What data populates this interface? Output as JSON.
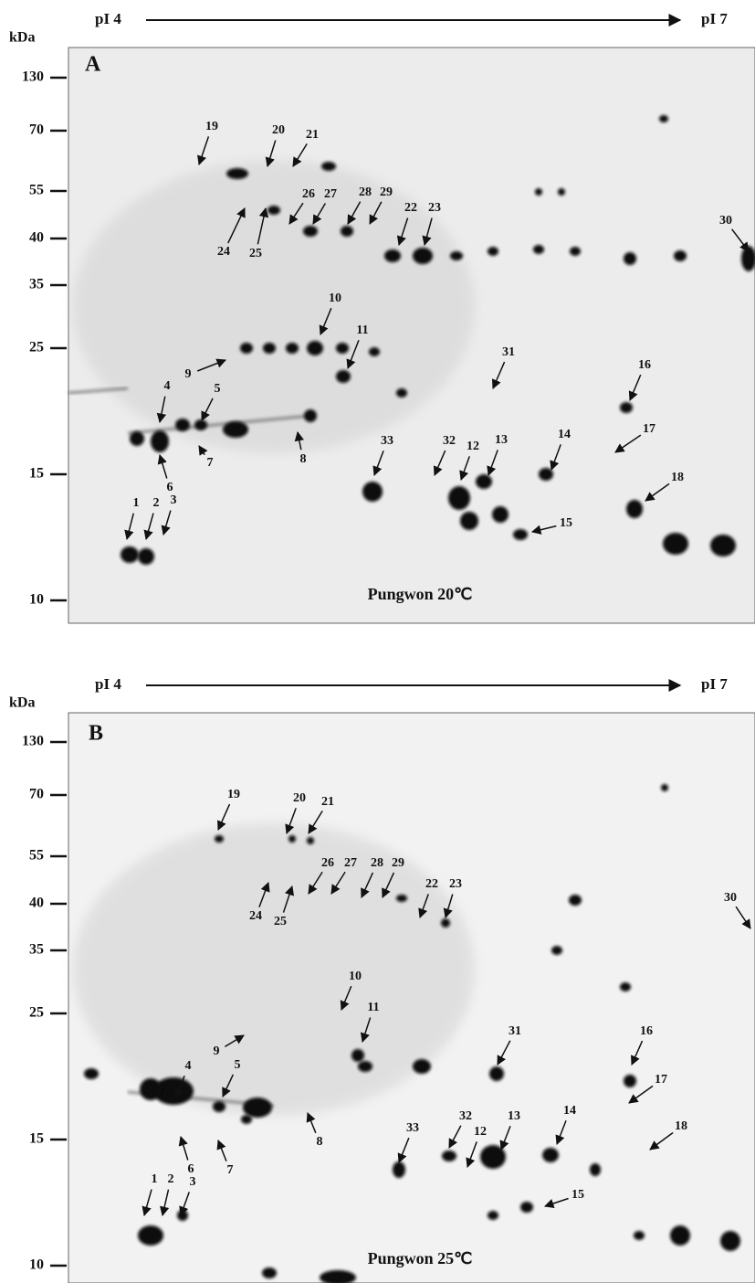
{
  "panels": [
    {
      "label": "A",
      "pi_start": "pI 4",
      "pi_end": "pI 7",
      "mw_unit": "kDa",
      "mw_ticks": [
        130,
        70,
        55,
        40,
        35,
        25,
        15,
        10
      ],
      "caption": "Pungwon 20℃",
      "spots": [
        "19",
        "20",
        "21",
        "24",
        "25",
        "26",
        "27",
        "28",
        "29",
        "22",
        "23",
        "30",
        "10",
        "11",
        "9",
        "4",
        "5",
        "6",
        "7",
        "8",
        "31",
        "16",
        "17",
        "33",
        "32",
        "12",
        "13",
        "14",
        "18",
        "15",
        "1",
        "2",
        "3"
      ]
    },
    {
      "label": "B",
      "pi_start": "pI 4",
      "pi_end": "pI 7",
      "mw_unit": "kDa",
      "mw_ticks": [
        130,
        70,
        55,
        40,
        35,
        25,
        15,
        10
      ],
      "caption": "Pungwon 25℃",
      "spots": [
        "19",
        "20",
        "21",
        "24",
        "25",
        "26",
        "27",
        "28",
        "29",
        "22",
        "23",
        "30",
        "10",
        "11",
        "9",
        "4",
        "5",
        "6",
        "7",
        "8",
        "31",
        "16",
        "17",
        "33",
        "32",
        "12",
        "13",
        "14",
        "18",
        "15",
        "1",
        "2",
        "3"
      ]
    }
  ]
}
